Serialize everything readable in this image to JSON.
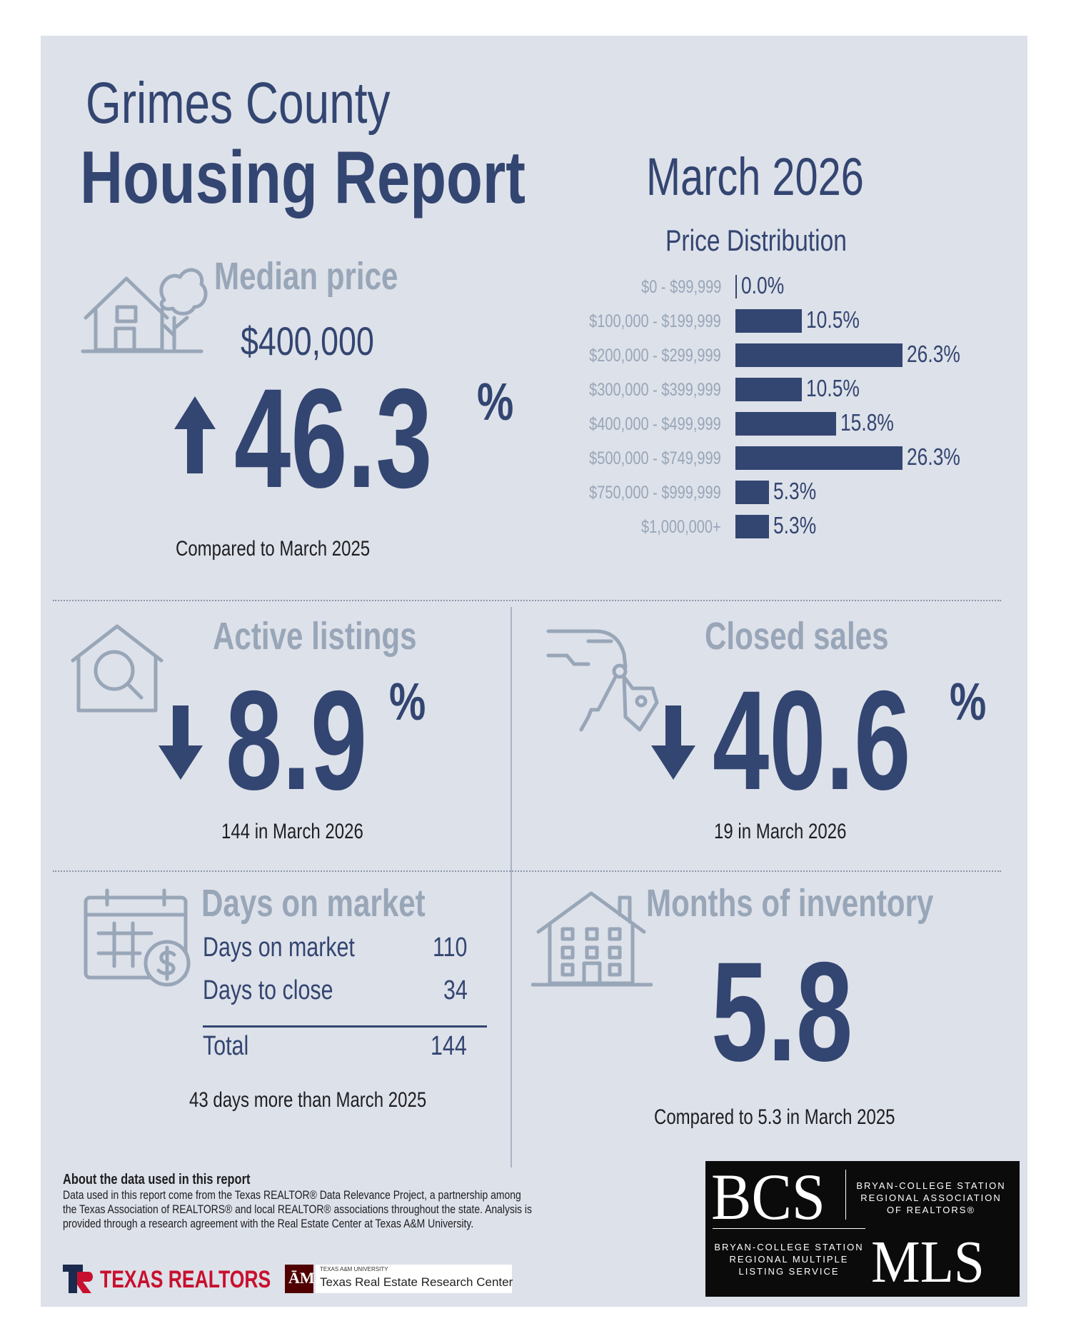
{
  "header": {
    "county": "Grimes County",
    "report_title": "Housing Report",
    "period": "March 2026"
  },
  "median_price": {
    "heading": "Median price",
    "value": "$400,000",
    "change": "46.3",
    "unit": "%",
    "direction": "up",
    "caption": "Compared to March 2025",
    "icon": "house-tree-icon"
  },
  "price_distribution": {
    "title": "Price Distribution",
    "chart_data": {
      "type": "bar",
      "orientation": "horizontal",
      "title": "Price Distribution",
      "categories": [
        "$0 - $99,999",
        "$100,000 - $199,999",
        "$200,000 - $299,999",
        "$300,000 - $399,999",
        "$400,000 - $499,999",
        "$500,000 - $749,999",
        "$750,000 - $999,999",
        "$1,000,000+"
      ],
      "values": [
        0.0,
        10.5,
        26.3,
        10.5,
        15.8,
        26.3,
        5.3,
        5.3
      ],
      "labels": [
        "0.0%",
        "10.5%",
        "26.3%",
        "10.5%",
        "15.8%",
        "26.3%",
        "5.3%",
        "5.3%"
      ],
      "unit": "%"
    }
  },
  "active_listings": {
    "heading": "Active listings",
    "change": "8.9",
    "unit": "%",
    "direction": "down",
    "caption": "144 in March 2026",
    "icon": "house-magnifier-icon"
  },
  "closed_sales": {
    "heading": "Closed sales",
    "change": "40.6",
    "unit": "%",
    "direction": "down",
    "caption": "19 in March 2026",
    "icon": "hand-keys-icon"
  },
  "days_on_market": {
    "heading": "Days on market",
    "rows": [
      {
        "label": "Days on market",
        "value": "110"
      },
      {
        "label": "Days to close",
        "value": "34"
      }
    ],
    "total_label": "Total",
    "total_value": "144",
    "caption": "43 days more than March 2025",
    "icon": "calendar-dollar-icon"
  },
  "months_inventory": {
    "heading": "Months of inventory",
    "value": "5.8",
    "caption": "Compared to 5.3 in March 2025",
    "icon": "apartment-house-icon"
  },
  "about": {
    "heading": "About the data used in this report",
    "text": "Data used in this report come from the Texas REALTOR® Data Relevance Project, a partnership among the Texas Association of REALTORS® and local REALTOR® associations throughout the state. Analysis is provided through a research agreement with the Real Estate Center at Texas A&M University."
  },
  "logos": {
    "texas_realtors": "TEXAS REALTORS",
    "tamu_small": "TEXAS A&M UNIVERSITY",
    "tamu_center": "Texas Real Estate Research Center",
    "bcs": "BCS",
    "bcs_assoc": [
      "BRYAN-COLLEGE STATION",
      "REGIONAL ASSOCIATION",
      "OF REALTORS®"
    ],
    "mls": "MLS",
    "mls_service": [
      "BRYAN-COLLEGE STATION",
      "REGIONAL MULTIPLE",
      "LISTING SERVICE"
    ]
  },
  "colors": {
    "navy": "#334571",
    "gray": "#98a6b8",
    "panel": "#dde1e9",
    "texas_red": "#c8102e",
    "tamu_maroon": "#500000"
  }
}
